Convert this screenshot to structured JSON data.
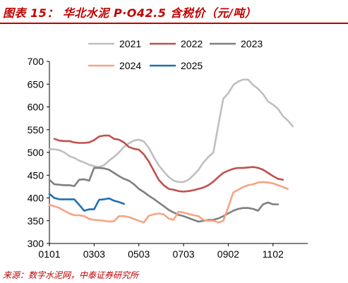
{
  "title": "图表 15：  华北水泥 P·O42.5 含税价（元/吨）",
  "source": "来源：数字水泥网，中泰证券研究所",
  "chart_data": {
    "type": "line",
    "ylim": [
      300,
      700
    ],
    "yticks": [
      300,
      350,
      400,
      450,
      500,
      550,
      600,
      650,
      700
    ],
    "xticks": [
      "0101",
      "0303",
      "0503",
      "0703",
      "0902",
      "1102"
    ],
    "xtick_positions": [
      0,
      9,
      18,
      27,
      36,
      45
    ],
    "xmax": 52,
    "grid": false,
    "legend_position": "top",
    "series": [
      {
        "name": "2021",
        "color": "#bfbfbf",
        "points": [
          [
            0,
            507
          ],
          [
            1,
            507
          ],
          [
            2,
            505
          ],
          [
            3,
            500
          ],
          [
            4,
            492
          ],
          [
            5,
            488
          ],
          [
            6,
            482
          ],
          [
            7,
            478
          ],
          [
            8,
            473
          ],
          [
            9,
            470
          ],
          [
            10,
            468
          ],
          [
            11,
            472
          ],
          [
            12,
            482
          ],
          [
            13,
            490
          ],
          [
            14,
            500
          ],
          [
            15,
            512
          ],
          [
            16,
            520
          ],
          [
            17,
            526
          ],
          [
            18,
            528
          ],
          [
            19,
            524
          ],
          [
            20,
            510
          ],
          [
            21,
            490
          ],
          [
            22,
            472
          ],
          [
            23,
            458
          ],
          [
            24,
            446
          ],
          [
            25,
            438
          ],
          [
            26,
            435
          ],
          [
            27,
            435
          ],
          [
            28,
            440
          ],
          [
            29,
            450
          ],
          [
            30,
            462
          ],
          [
            31,
            478
          ],
          [
            32,
            490
          ],
          [
            33,
            500
          ],
          [
            34,
            560
          ],
          [
            35,
            618
          ],
          [
            36,
            630
          ],
          [
            37,
            648
          ],
          [
            38,
            656
          ],
          [
            39,
            660
          ],
          [
            40,
            660
          ],
          [
            41,
            648
          ],
          [
            42,
            640
          ],
          [
            43,
            628
          ],
          [
            44,
            612
          ],
          [
            45,
            605
          ],
          [
            46,
            596
          ],
          [
            47,
            580
          ],
          [
            48,
            570
          ],
          [
            49,
            557
          ]
        ]
      },
      {
        "name": "2022",
        "color": "#c0504d",
        "points": [
          [
            1,
            530
          ],
          [
            2,
            526
          ],
          [
            3,
            525
          ],
          [
            4,
            525
          ],
          [
            5,
            522
          ],
          [
            6,
            521
          ],
          [
            7,
            521
          ],
          [
            8,
            522
          ],
          [
            9,
            527
          ],
          [
            10,
            535
          ],
          [
            11,
            537
          ],
          [
            12,
            537
          ],
          [
            13,
            530
          ],
          [
            14,
            528
          ],
          [
            15,
            522
          ],
          [
            16,
            512
          ],
          [
            17,
            508
          ],
          [
            18,
            506
          ],
          [
            19,
            496
          ],
          [
            20,
            480
          ],
          [
            21,
            460
          ],
          [
            22,
            440
          ],
          [
            23,
            428
          ],
          [
            24,
            420
          ],
          [
            25,
            418
          ],
          [
            26,
            415
          ],
          [
            27,
            414
          ],
          [
            28,
            415
          ],
          [
            29,
            417
          ],
          [
            30,
            420
          ],
          [
            31,
            423
          ],
          [
            32,
            428
          ],
          [
            33,
            436
          ],
          [
            34,
            446
          ],
          [
            35,
            455
          ],
          [
            36,
            460
          ],
          [
            37,
            464
          ],
          [
            38,
            466
          ],
          [
            39,
            466
          ],
          [
            40,
            467
          ],
          [
            41,
            468
          ],
          [
            42,
            466
          ],
          [
            43,
            462
          ],
          [
            44,
            455
          ],
          [
            45,
            448
          ],
          [
            46,
            442
          ],
          [
            47,
            440
          ]
        ]
      },
      {
        "name": "2023",
        "color": "#7f7f7f",
        "points": [
          [
            0,
            440
          ],
          [
            1,
            430
          ],
          [
            2,
            429
          ],
          [
            3,
            428
          ],
          [
            4,
            428
          ],
          [
            5,
            426
          ],
          [
            6,
            440
          ],
          [
            7,
            441
          ],
          [
            8,
            438
          ],
          [
            9,
            466
          ],
          [
            10,
            466
          ],
          [
            11,
            465
          ],
          [
            12,
            462
          ],
          [
            13,
            455
          ],
          [
            14,
            448
          ],
          [
            15,
            442
          ],
          [
            16,
            438
          ],
          [
            17,
            430
          ],
          [
            18,
            420
          ],
          [
            19,
            413
          ],
          [
            20,
            405
          ],
          [
            21,
            398
          ],
          [
            22,
            390
          ],
          [
            23,
            382
          ],
          [
            24,
            374
          ],
          [
            25,
            368
          ],
          [
            26,
            363
          ],
          [
            27,
            360
          ],
          [
            28,
            356
          ],
          [
            29,
            352
          ],
          [
            30,
            348
          ],
          [
            31,
            350
          ],
          [
            32,
            352
          ],
          [
            33,
            352
          ],
          [
            34,
            355
          ],
          [
            35,
            360
          ],
          [
            36,
            366
          ],
          [
            37,
            372
          ],
          [
            38,
            376
          ],
          [
            39,
            378
          ],
          [
            40,
            378
          ],
          [
            41,
            376
          ],
          [
            42,
            372
          ],
          [
            43,
            386
          ],
          [
            44,
            390
          ],
          [
            45,
            386
          ],
          [
            46,
            386
          ]
        ]
      },
      {
        "name": "2024",
        "color": "#f4a582",
        "points": [
          [
            0,
            385
          ],
          [
            1,
            382
          ],
          [
            2,
            378
          ],
          [
            3,
            372
          ],
          [
            4,
            366
          ],
          [
            5,
            362
          ],
          [
            6,
            362
          ],
          [
            7,
            360
          ],
          [
            8,
            354
          ],
          [
            9,
            352
          ],
          [
            10,
            351
          ],
          [
            11,
            350
          ],
          [
            12,
            348
          ],
          [
            13,
            349
          ],
          [
            14,
            360
          ],
          [
            15,
            360
          ],
          [
            16,
            358
          ],
          [
            17,
            354
          ],
          [
            18,
            350
          ],
          [
            19,
            346
          ],
          [
            20,
            361
          ],
          [
            21,
            364
          ],
          [
            22,
            366
          ],
          [
            23,
            364
          ],
          [
            24,
            355
          ],
          [
            25,
            352
          ],
          [
            26,
            370
          ],
          [
            27,
            368
          ],
          [
            28,
            365
          ],
          [
            29,
            362
          ],
          [
            30,
            360
          ],
          [
            31,
            352
          ],
          [
            32,
            350
          ],
          [
            33,
            350
          ],
          [
            34,
            346
          ],
          [
            35,
            350
          ],
          [
            36,
            380
          ],
          [
            37,
            412
          ],
          [
            38,
            418
          ],
          [
            39,
            424
          ],
          [
            40,
            428
          ],
          [
            41,
            430
          ],
          [
            42,
            434
          ],
          [
            43,
            435
          ],
          [
            44,
            434
          ],
          [
            45,
            432
          ],
          [
            46,
            428
          ],
          [
            47,
            424
          ],
          [
            48,
            420
          ]
        ]
      },
      {
        "name": "2025",
        "color": "#1f6fb4",
        "points": [
          [
            0,
            409
          ],
          [
            1,
            400
          ],
          [
            2,
            397
          ],
          [
            3,
            397
          ],
          [
            4,
            397
          ],
          [
            5,
            397
          ],
          [
            6,
            385
          ],
          [
            7,
            372
          ],
          [
            8,
            375
          ],
          [
            9,
            375
          ],
          [
            10,
            396
          ],
          [
            11,
            397
          ],
          [
            12,
            399
          ],
          [
            13,
            394
          ],
          [
            14,
            391
          ],
          [
            15,
            387
          ]
        ]
      }
    ]
  }
}
